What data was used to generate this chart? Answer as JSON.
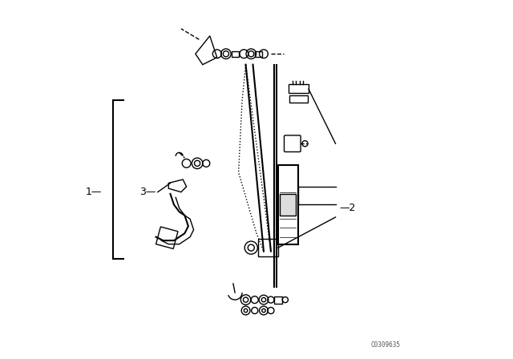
{
  "bg_color": "#ffffff",
  "line_color": "#000000",
  "fig_width": 6.4,
  "fig_height": 4.48,
  "dpi": 100,
  "watermark": "C0309635",
  "labels": {
    "1": [
      0.085,
      0.46
    ],
    "2": [
      0.72,
      0.42
    ],
    "3": [
      0.235,
      0.46
    ]
  },
  "bracket_1": {
    "x": [
      0.1,
      0.1
    ],
    "y": [
      0.28,
      0.72
    ]
  }
}
